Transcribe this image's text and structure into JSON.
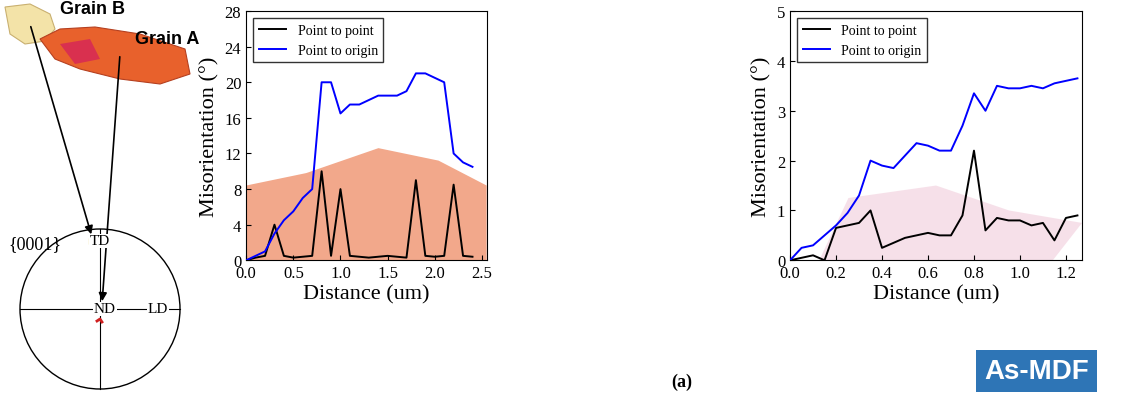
{
  "panel_label": "(a)",
  "badge": "As-MDF",
  "grain_map": {
    "labels": [
      "Grain B",
      "Grain A"
    ],
    "pole_figure": {
      "title": "{0001}",
      "axes": [
        "TD",
        "ND",
        "LD"
      ]
    }
  },
  "chart_data": [
    {
      "type": "line",
      "xlabel": "Distance (um)",
      "ylabel": "Misorientation (°)",
      "x": [
        0.0,
        0.1,
        0.2,
        0.3,
        0.4,
        0.5,
        0.6,
        0.7,
        0.8,
        0.9,
        1.0,
        1.1,
        1.2,
        1.3,
        1.4,
        1.5,
        1.6,
        1.7,
        1.8,
        1.9,
        2.0,
        2.1,
        2.2,
        2.3,
        2.4
      ],
      "series": [
        {
          "name": "Point to point",
          "color": "#000000",
          "values": [
            0,
            0.3,
            0.5,
            4,
            0.5,
            0.3,
            0.4,
            0.5,
            10,
            0.5,
            8,
            0.5,
            0.4,
            0.3,
            0.4,
            0.5,
            0.4,
            0.3,
            9,
            0.5,
            0.4,
            0.5,
            8.5,
            0.5,
            0.4
          ]
        },
        {
          "name": "Point to origin",
          "color": "#0000ff",
          "values": [
            0,
            0.5,
            1,
            3,
            4.5,
            5.5,
            7,
            8,
            20,
            20,
            16.5,
            17.5,
            17.5,
            18,
            18.5,
            18.5,
            18.5,
            19,
            21,
            21,
            20.5,
            20,
            12,
            11,
            10.5
          ]
        }
      ],
      "xlim": [
        0,
        2.55
      ],
      "xticks": [
        0.0,
        0.5,
        1.0,
        1.5,
        2.0,
        2.5
      ],
      "ylim": [
        0,
        28
      ],
      "yticks": [
        0,
        4,
        8,
        12,
        16,
        20,
        24,
        28
      ],
      "legend": "upper left"
    },
    {
      "type": "line",
      "xlabel": "Distance (um)",
      "ylabel": "Misorientation (°)",
      "x": [
        0.0,
        0.05,
        0.1,
        0.15,
        0.2,
        0.25,
        0.3,
        0.35,
        0.4,
        0.45,
        0.5,
        0.55,
        0.6,
        0.65,
        0.7,
        0.75,
        0.8,
        0.85,
        0.9,
        0.95,
        1.0,
        1.05,
        1.1,
        1.15,
        1.2,
        1.25
      ],
      "series": [
        {
          "name": "Point to point",
          "color": "#000000",
          "values": [
            0,
            0.05,
            0.1,
            0,
            0.65,
            0.7,
            0.75,
            1.0,
            0.25,
            0.35,
            0.45,
            0.5,
            0.55,
            0.5,
            0.5,
            0.9,
            2.2,
            0.6,
            0.85,
            0.8,
            0.8,
            0.7,
            0.75,
            0.4,
            0.85,
            0.9
          ]
        },
        {
          "name": "Point to origin",
          "color": "#0000ff",
          "values": [
            0,
            0.25,
            0.3,
            0.5,
            0.7,
            0.95,
            1.3,
            2.0,
            1.9,
            1.85,
            2.1,
            2.35,
            2.3,
            2.2,
            2.2,
            2.7,
            3.35,
            3.0,
            3.5,
            3.45,
            3.45,
            3.5,
            3.45,
            3.55,
            3.6,
            3.65
          ]
        }
      ],
      "xlim": [
        0,
        1.27
      ],
      "xticks": [
        0.0,
        0.2,
        0.4,
        0.6,
        0.8,
        1.0,
        1.2
      ],
      "ylim": [
        0,
        5
      ],
      "yticks": [
        0,
        1,
        2,
        3,
        4,
        5
      ],
      "legend": "upper left"
    }
  ]
}
